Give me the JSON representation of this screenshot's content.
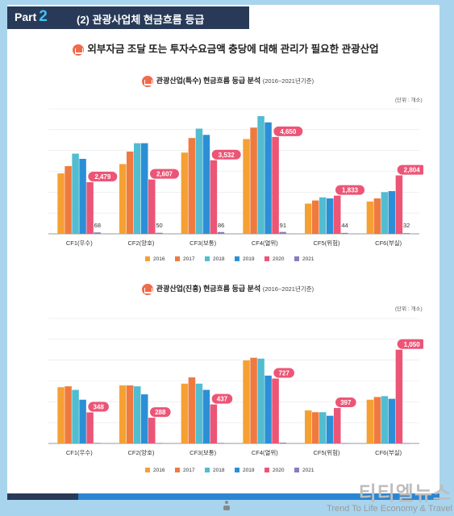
{
  "header": {
    "part_word": "Part",
    "part_num": "2",
    "title": "(2) 관광사업체 현금흐름 등급"
  },
  "subtitle": "외부자금 조달 또는 투자수요금액 충당에 대해 관리가 필요한 관광산업",
  "colors": {
    "2016": "#f5a033",
    "2017": "#ef7a40",
    "2018": "#52bcd0",
    "2019": "#2c8fd6",
    "2020": "#ec5576",
    "2021": "#8a7cc4",
    "header_bg": "#283a57",
    "accent": "#3ec4f0"
  },
  "chart_data": [
    {
      "type": "bar",
      "title": "관광산업(특수) 현금흐름 등급 분석",
      "subtitle": "(2016~2021년기준)",
      "unit": "(단위 : 개소)",
      "categories": [
        "CF1(우수)",
        "CF2(양호)",
        "CF3(보통)",
        "CF4(열위)",
        "CF5(위험)",
        "CF6(부실)"
      ],
      "series": [
        {
          "name": "2016",
          "values": [
            2900,
            3350,
            3900,
            4550,
            1450,
            1550
          ]
        },
        {
          "name": "2017",
          "values": [
            3250,
            3950,
            4600,
            5100,
            1600,
            1700
          ]
        },
        {
          "name": "2018",
          "values": [
            3850,
            4350,
            5050,
            5650,
            1750,
            2000
          ]
        },
        {
          "name": "2019",
          "values": [
            3600,
            4350,
            4750,
            5350,
            1700,
            2050
          ]
        },
        {
          "name": "2020",
          "values": [
            2479,
            2607,
            3532,
            4650,
            1833,
            2804
          ]
        },
        {
          "name": "2021",
          "values": [
            68,
            50,
            86,
            91,
            44,
            32
          ]
        }
      ],
      "data_labels": {
        "2020": [
          "2,479",
          "2,607",
          "3,532",
          "4,650",
          "1,833",
          "2,804"
        ],
        "2021": [
          "68",
          "50",
          "86",
          "91",
          "44",
          "32"
        ]
      },
      "ylim": [
        0,
        6000
      ],
      "grid": true,
      "legend": "bottom"
    },
    {
      "type": "bar",
      "title": "관광산업(진흥) 현금흐름 등급 분석",
      "subtitle": "(2016~2021년기준)",
      "unit": "(단위 : 개소)",
      "categories": [
        "CF1(우수)",
        "CF2(양호)",
        "CF3(보통)",
        "CF4(열위)",
        "CF5(위험)",
        "CF6(부실)"
      ],
      "series": [
        {
          "name": "2016",
          "values": [
            630,
            650,
            670,
            930,
            370,
            490
          ]
        },
        {
          "name": "2017",
          "values": [
            640,
            650,
            740,
            960,
            350,
            520
          ]
        },
        {
          "name": "2018",
          "values": [
            600,
            640,
            670,
            950,
            350,
            530
          ]
        },
        {
          "name": "2019",
          "values": [
            490,
            550,
            600,
            760,
            310,
            500
          ]
        },
        {
          "name": "2020",
          "values": [
            348,
            288,
            437,
            727,
            397,
            1050
          ]
        },
        {
          "name": "2021",
          "values": [
            6,
            5,
            6,
            9,
            4,
            3
          ]
        }
      ],
      "data_labels": {
        "2020": [
          "348",
          "288",
          "437",
          "727",
          "397",
          "1,050"
        ]
      },
      "ylim": [
        0,
        1400
      ],
      "grid": true,
      "legend": "bottom"
    }
  ],
  "legend_labels": [
    "2016",
    "2017",
    "2018",
    "2019",
    "2020",
    "2021"
  ],
  "watermark": {
    "main": "티티엘뉴스",
    "sub": "Trend To Life Economy & Travel"
  }
}
